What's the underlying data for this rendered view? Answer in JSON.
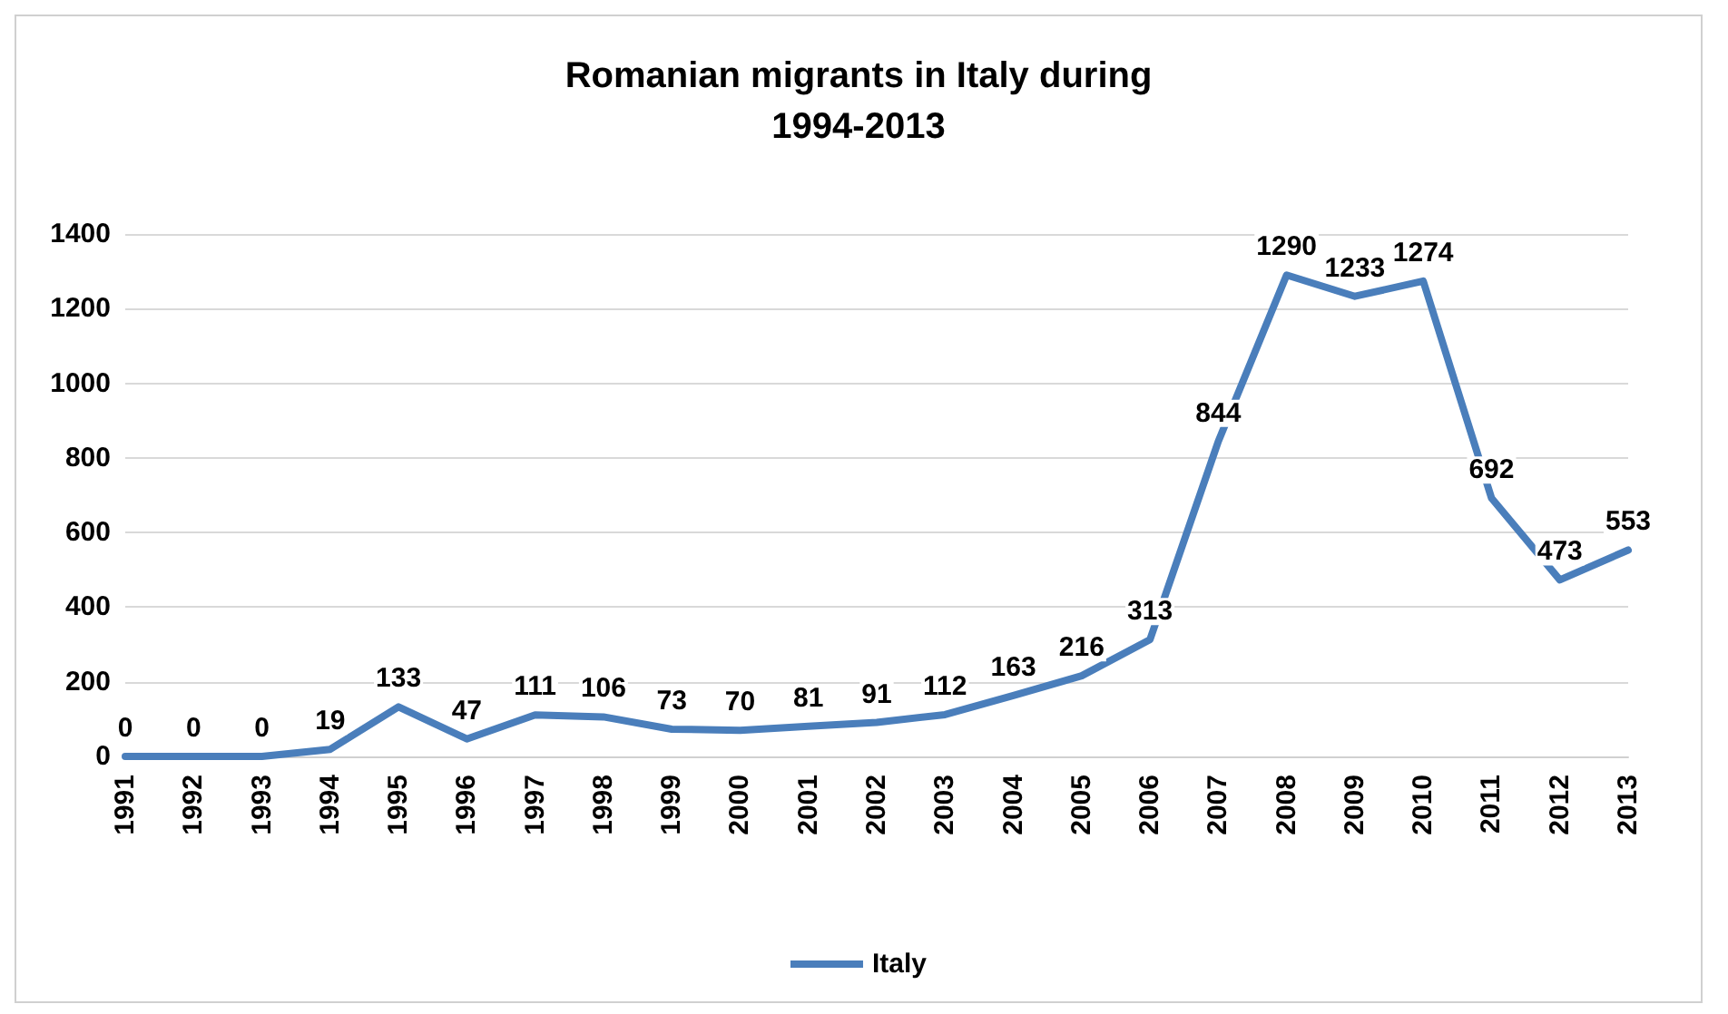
{
  "chart_data": {
    "type": "line",
    "title": "Romanian migrants in Italy during\n1994-2013",
    "categories": [
      "1991",
      "1992",
      "1993",
      "1994",
      "1995",
      "1996",
      "1997",
      "1998",
      "1999",
      "2000",
      "2001",
      "2002",
      "2003",
      "2004",
      "2005",
      "2006",
      "2007",
      "2008",
      "2009",
      "2010",
      "2011",
      "2012",
      "2013"
    ],
    "series": [
      {
        "name": "Italy",
        "color": "#4a7ebb",
        "values": [
          0,
          0,
          0,
          19,
          133,
          47,
          111,
          106,
          73,
          70,
          81,
          91,
          112,
          163,
          216,
          313,
          844,
          1290,
          1233,
          1274,
          692,
          473,
          553
        ]
      }
    ],
    "ylim": [
      0,
      1400
    ],
    "yticks": [
      0,
      200,
      400,
      600,
      800,
      1000,
      1200,
      1400
    ],
    "grid": "y",
    "legend": "bottom",
    "data_labels": true,
    "marker": "none",
    "line_style": "solid"
  }
}
